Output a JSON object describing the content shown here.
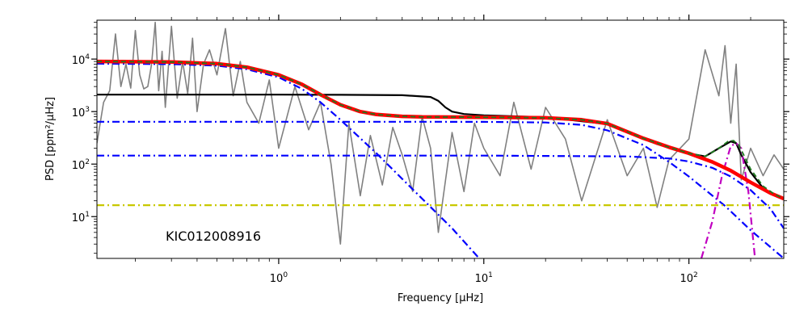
{
  "chart_data": {
    "type": "line",
    "title": "",
    "xlabel": "Frequency [μHz]",
    "ylabel": "PSD [ppm²/μHz]",
    "x_scale": "log",
    "y_scale": "log",
    "xlim": [
      0.13,
      290
    ],
    "ylim": [
      1.6,
      55000
    ],
    "x_tick_labels": [
      {
        "value": 1,
        "mantissa": "10",
        "exponent": "0"
      },
      {
        "value": 10,
        "mantissa": "10",
        "exponent": "1"
      },
      {
        "value": 100,
        "mantissa": "10",
        "exponent": "2"
      }
    ],
    "y_tick_labels": [
      {
        "value": 10,
        "mantissa": "10",
        "exponent": "1"
      },
      {
        "value": 100,
        "mantissa": "10",
        "exponent": "2"
      },
      {
        "value": 1000,
        "mantissa": "10",
        "exponent": "3"
      },
      {
        "value": 10000,
        "mantissa": "10",
        "exponent": "4"
      }
    ],
    "annotation": "KIC012008916",
    "grid": false,
    "legend": "none",
    "series": [
      {
        "style": "raw",
        "color": "#808080",
        "x": [
          0.13,
          0.14,
          0.15,
          0.16,
          0.17,
          0.18,
          0.19,
          0.2,
          0.21,
          0.22,
          0.23,
          0.24,
          0.25,
          0.26,
          0.27,
          0.28,
          0.3,
          0.32,
          0.34,
          0.36,
          0.38,
          0.4,
          0.43,
          0.46,
          0.5,
          0.55,
          0.6,
          0.65,
          0.7,
          0.8,
          0.9,
          1.0,
          1.2,
          1.4,
          1.6,
          1.8,
          2.0,
          2.2,
          2.5,
          2.8,
          3.2,
          3.6,
          4.0,
          4.5,
          5.0,
          5.5,
          6.0,
          7.0,
          8.0,
          9.0,
          10,
          12,
          14,
          17,
          20,
          25,
          30,
          40,
          50,
          60,
          70,
          80,
          100,
          120,
          140,
          150,
          160,
          170,
          180,
          200,
          230,
          260,
          290
        ],
        "y": [
          250,
          1500,
          2500,
          30000,
          3000,
          8000,
          2800,
          35000,
          5000,
          2700,
          3000,
          8000,
          50000,
          2500,
          14000,
          1200,
          42000,
          1800,
          9000,
          2200,
          25000,
          1000,
          8000,
          15000,
          5000,
          38000,
          2000,
          9000,
          1500,
          600,
          4000,
          200,
          3000,
          450,
          1500,
          100,
          3,
          600,
          25,
          350,
          40,
          500,
          150,
          30,
          800,
          200,
          5,
          400,
          30,
          600,
          200,
          60,
          1500,
          80,
          1200,
          300,
          20,
          700,
          60,
          200,
          15,
          120,
          300,
          15000,
          2000,
          18000,
          600,
          8000,
          50,
          200,
          60,
          150,
          80
        ]
      },
      {
        "style": "solid",
        "color": "#000000",
        "x": [
          0.13,
          0.5,
          1,
          2,
          4,
          5.5,
          6,
          6.5,
          7,
          8,
          10,
          20,
          40,
          70,
          100,
          120,
          140,
          160,
          170,
          180,
          200,
          230,
          260,
          290
        ],
        "y": [
          2100,
          2100,
          2100,
          2090,
          2050,
          1900,
          1600,
          1200,
          1000,
          900,
          850,
          780,
          580,
          240,
          160,
          140,
          200,
          270,
          250,
          150,
          70,
          35,
          26,
          22
        ]
      },
      {
        "style": "dashdot",
        "color": "#0000ff",
        "x": [
          0.13,
          0.3,
          0.5,
          0.7,
          1.0,
          1.3,
          1.6,
          2.0,
          3.0,
          5.0,
          7.0,
          9.5
        ],
        "y": [
          8200,
          8000,
          7500,
          6400,
          4500,
          2700,
          1500,
          700,
          160,
          22,
          6,
          1.6
        ]
      },
      {
        "style": "dashdot",
        "color": "#0000ff",
        "x": [
          0.13,
          1,
          5,
          10,
          20,
          30,
          40,
          60,
          80,
          100,
          150,
          200,
          290
        ],
        "y": [
          640,
          640,
          640,
          638,
          620,
          560,
          440,
          230,
          110,
          58,
          16,
          5.5,
          1.6
        ]
      },
      {
        "style": "dashdot",
        "color": "#0000ff",
        "x": [
          0.13,
          1,
          10,
          50,
          80,
          100,
          130,
          160,
          200,
          250,
          290
        ],
        "y": [
          145,
          145,
          145,
          140,
          128,
          112,
          85,
          58,
          32,
          14,
          6
        ]
      },
      {
        "style": "dashdot",
        "color": "#c8c800",
        "x": [
          0.13,
          290
        ],
        "y": [
          16.5,
          16.5
        ]
      },
      {
        "style": "dashdot",
        "color": "#c000c0",
        "x": [
          115,
          130,
          145,
          160,
          170,
          180,
          195,
          210
        ],
        "y": [
          1.6,
          8,
          60,
          220,
          250,
          200,
          30,
          1.6
        ]
      },
      {
        "style": "thick",
        "color": "#ff0000",
        "x": [
          0.13,
          0.3,
          0.5,
          0.7,
          1.0,
          1.3,
          1.6,
          2.0,
          2.5,
          3.0,
          4.0,
          5.0,
          10,
          20,
          30,
          40,
          60,
          80,
          100,
          130,
          160,
          200,
          250,
          290
        ],
        "y": [
          9000,
          8800,
          8200,
          7000,
          5000,
          3300,
          2100,
          1350,
          1000,
          880,
          810,
          790,
          780,
          760,
          700,
          590,
          310,
          210,
          160,
          110,
          75,
          45,
          28,
          22
        ]
      },
      {
        "style": "dashed",
        "color": "#1f7a1f",
        "x": [
          0.13,
          0.3,
          0.5,
          0.7,
          1.0,
          1.3,
          1.6,
          2.0,
          2.5,
          3.0,
          4.0,
          5.0,
          10,
          20,
          30,
          40,
          60,
          80,
          100,
          120,
          140,
          155,
          165,
          175,
          185,
          200,
          230,
          260,
          290
        ],
        "y": [
          9000,
          8800,
          8200,
          7000,
          5000,
          3300,
          2100,
          1350,
          1000,
          880,
          810,
          790,
          780,
          760,
          700,
          590,
          310,
          210,
          160,
          140,
          200,
          270,
          280,
          230,
          150,
          80,
          38,
          27,
          22
        ]
      }
    ]
  }
}
